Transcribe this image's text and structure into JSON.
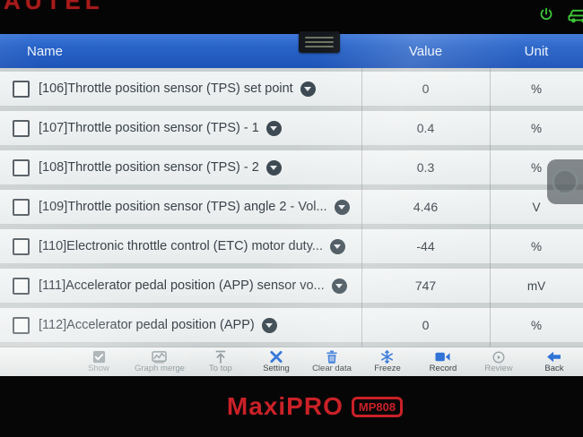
{
  "device": {
    "brand_logo": "AUTEL",
    "model_name": "MaxiPRO",
    "model_badge": "MP808",
    "status_icons": [
      {
        "name": "power-icon",
        "color": "#3dc838"
      },
      {
        "name": "vehicle-icon",
        "color": "#3dc838"
      }
    ]
  },
  "header": {
    "columns": [
      {
        "label": "Name"
      },
      {
        "label": "Value"
      },
      {
        "label": "Unit"
      }
    ]
  },
  "table": {
    "rows": [
      {
        "name": "[106]Throttle position sensor (TPS) set point",
        "value": "0",
        "unit": "%"
      },
      {
        "name": "[107]Throttle position sensor (TPS) - 1",
        "value": "0.4",
        "unit": "%"
      },
      {
        "name": "[108]Throttle position sensor (TPS) - 2",
        "value": "0.3",
        "unit": "%"
      },
      {
        "name": "[109]Throttle position sensor (TPS) angle 2 - Vol...",
        "value": "4.46",
        "unit": "V"
      },
      {
        "name": "[110]Electronic throttle control (ETC) motor duty...",
        "value": "-44",
        "unit": "%"
      },
      {
        "name": "[111]Accelerator pedal position (APP) sensor vo...",
        "value": "747",
        "unit": "mV"
      },
      {
        "name": "[112]Accelerator pedal position (APP)",
        "value": "0",
        "unit": "%"
      }
    ]
  },
  "toolbar": {
    "buttons": [
      {
        "label": "Show",
        "icon": "checkbox-icon",
        "enabled": false
      },
      {
        "label": "Graph merge",
        "icon": "graph-icon",
        "enabled": false
      },
      {
        "label": "To top",
        "icon": "arrow-up-icon",
        "enabled": false
      },
      {
        "label": "Setting",
        "icon": "tools-icon",
        "enabled": true
      },
      {
        "label": "Clear data",
        "icon": "trash-icon",
        "enabled": true
      },
      {
        "label": "Freeze",
        "icon": "snowflake-icon",
        "enabled": true
      },
      {
        "label": "Record",
        "icon": "video-camera-icon",
        "enabled": true
      },
      {
        "label": "Review",
        "icon": "play-circle-icon",
        "enabled": false
      },
      {
        "label": "Back",
        "icon": "arrow-left-icon",
        "enabled": true
      }
    ]
  },
  "colors": {
    "header_blue": "#2a65c9",
    "accent_blue": "#2a6fd6",
    "brand_red": "#c92127",
    "status_green": "#3dc838",
    "disabled_gray": "#98a2a6"
  }
}
